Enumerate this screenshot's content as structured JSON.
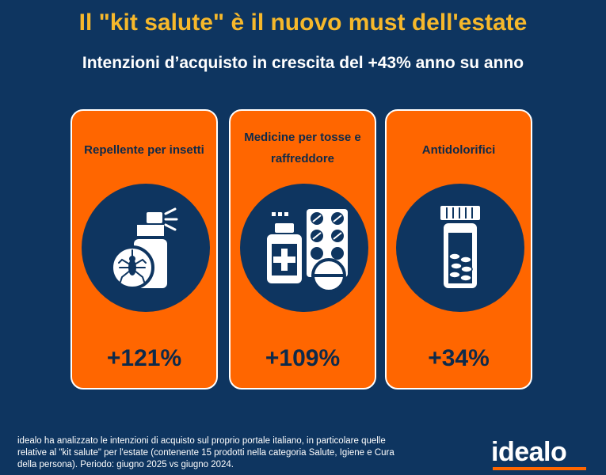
{
  "header": {
    "title": "Il \"kit salute\" è il nuovo must dell'estate",
    "subtitle": "Intenzioni d’acquisto in crescita del +43% anno su anno"
  },
  "cards": [
    {
      "label": "Repellente per insetti",
      "icon": "insect-repellent-spray-icon",
      "value": "+121%"
    },
    {
      "label": "Medicine per tosse e raffreddore",
      "icon": "medicine-bottle-pills-icon",
      "value": "+109%"
    },
    {
      "label": "Antidolorifici",
      "icon": "pill-jar-icon",
      "value": "+34%"
    }
  ],
  "footer": {
    "note": "idealo ha analizzato le intenzioni di acquisto sul proprio portale italiano, in particolare quelle relative al \"kit salute\" per l'estate  (contenente 15 prodotti nella categoria Salute, Igiene e Cura della persona). Periodo: giugno 2025 vs giugno 2024.",
    "logo": "idealo"
  },
  "colors": {
    "background": "#0e3560",
    "title": "#f6b82b",
    "card": "#ff6600",
    "card_text": "#0e2a4a",
    "logo_bar": "#ff6600"
  }
}
